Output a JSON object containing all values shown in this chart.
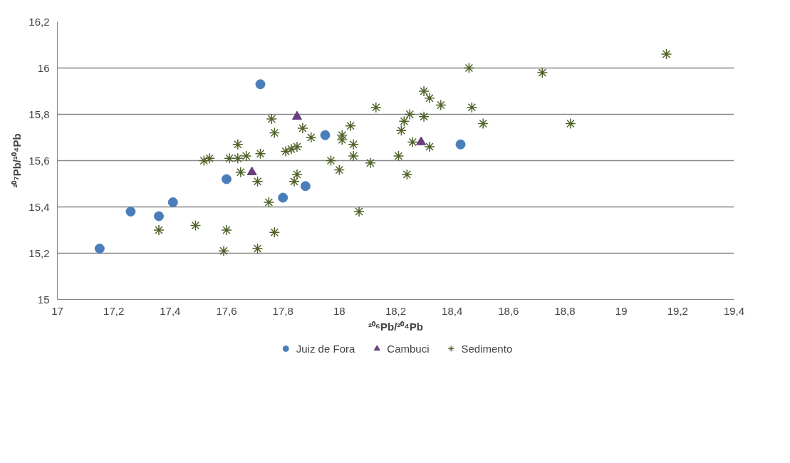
{
  "chart_data": {
    "type": "scatter",
    "xlabel": "²⁰⁶Pb/²⁰⁴Pb",
    "ylabel": "²⁰⁷Pb/²⁰⁴Pb",
    "xlim": [
      17,
      19.4
    ],
    "ylim": [
      15,
      16.2
    ],
    "xticks": [
      17,
      {
        "value": 17.2,
        "label": "17,2"
      },
      {
        "value": 17.4,
        "label": "17,4"
      },
      {
        "value": 17.6,
        "label": "17,6"
      },
      {
        "value": 17.8,
        "label": "17,8"
      },
      18,
      {
        "value": 18.2,
        "label": "18,2"
      },
      {
        "value": 18.4,
        "label": "18,4"
      },
      {
        "value": 18.6,
        "label": "18,6"
      },
      {
        "value": 18.8,
        "label": "18,8"
      },
      19,
      {
        "value": 19.2,
        "label": "19,2"
      },
      {
        "value": 19.4,
        "label": "19,4"
      }
    ],
    "yticks": [
      15,
      {
        "value": 15.2,
        "label": "15,2"
      },
      {
        "value": 15.4,
        "label": "15,4"
      },
      {
        "value": 15.6,
        "label": "15,6"
      },
      {
        "value": 15.8,
        "label": "15,8"
      },
      16,
      {
        "value": 16.2,
        "label": "16,2"
      }
    ],
    "grid": "y",
    "legend": "bottom",
    "series": [
      {
        "name": "Juiz de Fora",
        "color": "#4a7ebb",
        "marker": "circle",
        "x": [
          17.15,
          17.26,
          17.36,
          17.41,
          17.6,
          17.8,
          17.88,
          17.72,
          17.95,
          18.43
        ],
        "values": [
          15.22,
          15.38,
          15.36,
          15.42,
          15.52,
          15.44,
          15.49,
          15.93,
          15.71,
          15.67
        ]
      },
      {
        "name": "Cambuci",
        "color": "#6a3d7c",
        "marker": "triangle",
        "x": [
          17.69,
          17.85,
          18.29
        ],
        "values": [
          15.55,
          15.79,
          15.68
        ]
      },
      {
        "name": "Sedimento",
        "color": "#4f6228",
        "marker": "cross",
        "x": [
          17.76,
          17.77,
          17.87,
          17.64,
          17.52,
          17.54,
          17.61,
          17.64,
          17.67,
          17.72,
          17.65,
          17.71,
          17.85,
          17.84,
          17.75,
          17.36,
          17.49,
          17.6,
          17.77,
          17.59,
          17.71,
          18.46,
          18.3,
          18.32,
          18.36,
          18.47,
          18.13,
          18.25,
          18.23,
          18.3,
          18.51,
          18.22,
          18.04,
          18.01,
          18.01,
          18.05,
          17.9,
          17.85,
          17.83,
          17.81,
          18.26,
          18.32,
          18.21,
          18.05,
          18.11,
          17.97,
          18.0,
          18.24,
          18.07,
          19.16,
          18.72,
          18.82
        ],
        "values": [
          15.78,
          15.72,
          15.74,
          15.67,
          15.6,
          15.61,
          15.61,
          15.61,
          15.62,
          15.63,
          15.55,
          15.51,
          15.54,
          15.51,
          15.42,
          15.3,
          15.32,
          15.3,
          15.29,
          15.21,
          15.22,
          16.0,
          15.9,
          15.87,
          15.84,
          15.83,
          15.83,
          15.8,
          15.77,
          15.79,
          15.76,
          15.73,
          15.75,
          15.71,
          15.69,
          15.67,
          15.7,
          15.66,
          15.65,
          15.64,
          15.68,
          15.66,
          15.62,
          15.62,
          15.59,
          15.6,
          15.56,
          15.54,
          15.38,
          16.06,
          15.98,
          15.76
        ]
      }
    ]
  }
}
